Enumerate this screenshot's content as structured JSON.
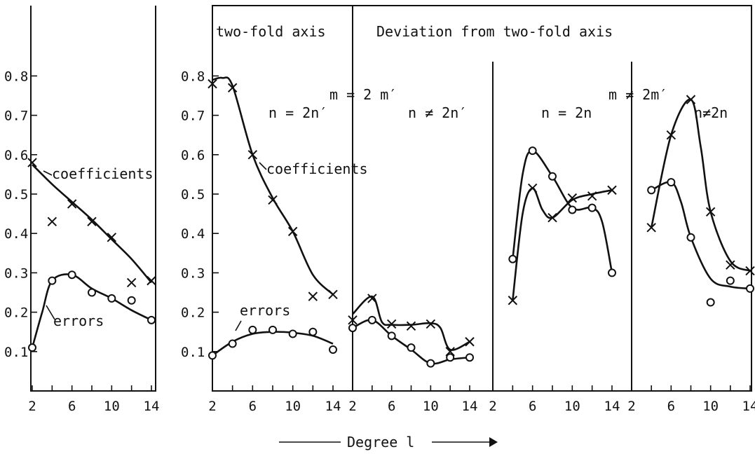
{
  "chart_data": [
    {
      "type": "line",
      "panel": "left",
      "title": "",
      "xlabel": "",
      "ylabel": "",
      "xlim": [
        2,
        14
      ],
      "ylim": [
        0,
        0.9
      ],
      "x_ticks": [
        "2",
        "6",
        "10",
        "14"
      ],
      "y_ticks": [
        "0.1",
        "0.2",
        "0.3",
        "0.4",
        "0.5",
        "0.6",
        "0.7",
        "0.8"
      ],
      "series": [
        {
          "name": "coefficients",
          "marker": "x",
          "points": [
            [
              2,
              0.58
            ],
            [
              4,
              0.43
            ],
            [
              6,
              0.475
            ],
            [
              8,
              0.43
            ],
            [
              10,
              0.39
            ],
            [
              12,
              0.275
            ],
            [
              14,
              0.28
            ]
          ],
          "curve": [
            [
              2,
              0.575
            ],
            [
              4,
              0.525
            ],
            [
              6,
              0.48
            ],
            [
              8,
              0.435
            ],
            [
              10,
              0.385
            ],
            [
              12,
              0.335
            ],
            [
              14,
              0.275
            ]
          ]
        },
        {
          "name": "errors",
          "marker": "o",
          "points": [
            [
              2,
              0.11
            ],
            [
              4,
              0.28
            ],
            [
              6,
              0.295
            ],
            [
              8,
              0.25
            ],
            [
              10,
              0.235
            ],
            [
              12,
              0.23
            ],
            [
              14,
              0.18
            ]
          ],
          "curve": [
            [
              2,
              0.11
            ],
            [
              3,
              0.2
            ],
            [
              4,
              0.28
            ],
            [
              6,
              0.295
            ],
            [
              8,
              0.26
            ],
            [
              10,
              0.235
            ],
            [
              12,
              0.205
            ],
            [
              14,
              0.18
            ]
          ]
        }
      ]
    },
    {
      "type": "line",
      "panel": "right",
      "xlabel": "Degree l",
      "ylim": [
        0,
        0.9
      ],
      "y_ticks": [
        "0.1",
        "0.2",
        "0.3",
        "0.4",
        "0.5",
        "0.6",
        "0.7",
        "0.8"
      ],
      "headers": {
        "section1": "two-fold axis",
        "section2": "Deviation from two-fold axis",
        "m_eq": "m = 2 m′",
        "m_neq": "m ≠ 2m′"
      },
      "subpanels": [
        {
          "label": "n = 2n′",
          "x_ticks": [
            "2",
            "6",
            "10",
            "14"
          ],
          "series": [
            {
              "name": "coefficients",
              "marker": "x",
              "points": [
                [
                  2,
                  0.78
                ],
                [
                  4,
                  0.77
                ],
                [
                  6,
                  0.6
                ],
                [
                  8,
                  0.485
                ],
                [
                  10,
                  0.405
                ],
                [
                  12,
                  0.24
                ],
                [
                  14,
                  0.245
                ]
              ],
              "curve": [
                [
                  2,
                  0.79
                ],
                [
                  3,
                  0.795
                ],
                [
                  4,
                  0.775
                ],
                [
                  6,
                  0.6
                ],
                [
                  8,
                  0.49
                ],
                [
                  10,
                  0.405
                ],
                [
                  12,
                  0.295
                ],
                [
                  14,
                  0.245
                ]
              ]
            },
            {
              "name": "errors",
              "marker": "o",
              "points": [
                [
                  2,
                  0.09
                ],
                [
                  4,
                  0.12
                ],
                [
                  6,
                  0.155
                ],
                [
                  8,
                  0.155
                ],
                [
                  10,
                  0.145
                ],
                [
                  12,
                  0.15
                ],
                [
                  14,
                  0.105
                ]
              ],
              "curve": [
                [
                  2,
                  0.09
                ],
                [
                  4,
                  0.125
                ],
                [
                  6,
                  0.145
                ],
                [
                  8,
                  0.15
                ],
                [
                  10,
                  0.148
                ],
                [
                  12,
                  0.14
                ],
                [
                  14,
                  0.12
                ]
              ]
            }
          ]
        },
        {
          "label": "n ≠ 2n′",
          "x_ticks": [
            "2",
            "6",
            "10",
            "14"
          ],
          "series": [
            {
              "name": "coefficients",
              "marker": "x",
              "points": [
                [
                  2,
                  0.18
                ],
                [
                  4,
                  0.235
                ],
                [
                  6,
                  0.17
                ],
                [
                  8,
                  0.165
                ],
                [
                  10,
                  0.17
                ],
                [
                  12,
                  0.1
                ],
                [
                  14,
                  0.125
                ]
              ],
              "curve": [
                [
                  2,
                  0.195
                ],
                [
                  4,
                  0.24
                ],
                [
                  5,
                  0.175
                ],
                [
                  6,
                  0.168
                ],
                [
                  8,
                  0.168
                ],
                [
                  10,
                  0.172
                ],
                [
                  11,
                  0.16
                ],
                [
                  12,
                  0.105
                ],
                [
                  14,
                  0.125
                ]
              ]
            },
            {
              "name": "errors",
              "marker": "o",
              "points": [
                [
                  2,
                  0.16
                ],
                [
                  4,
                  0.18
                ],
                [
                  6,
                  0.14
                ],
                [
                  8,
                  0.11
                ],
                [
                  10,
                  0.07
                ],
                [
                  12,
                  0.085
                ],
                [
                  14,
                  0.085
                ]
              ],
              "curve": [
                [
                  2,
                  0.16
                ],
                [
                  4,
                  0.18
                ],
                [
                  6,
                  0.14
                ],
                [
                  8,
                  0.105
                ],
                [
                  10,
                  0.07
                ],
                [
                  12,
                  0.08
                ],
                [
                  14,
                  0.085
                ]
              ]
            }
          ]
        },
        {
          "label": "n = 2n",
          "x_ticks": [
            "2",
            "6",
            "10",
            "14"
          ],
          "series": [
            {
              "name": "coefficients",
              "marker": "x",
              "points": [
                [
                  4,
                  0.23
                ],
                [
                  6,
                  0.515
                ],
                [
                  8,
                  0.44
                ],
                [
                  10,
                  0.49
                ],
                [
                  12,
                  0.495
                ],
                [
                  14,
                  0.51
                ]
              ],
              "curve": [
                [
                  4,
                  0.23
                ],
                [
                  5,
                  0.45
                ],
                [
                  6,
                  0.515
                ],
                [
                  7,
                  0.46
                ],
                [
                  8,
                  0.44
                ],
                [
                  10,
                  0.485
                ],
                [
                  12,
                  0.5
                ],
                [
                  14,
                  0.51
                ]
              ]
            },
            {
              "name": "errors",
              "marker": "o",
              "points": [
                [
                  4,
                  0.335
                ],
                [
                  6,
                  0.61
                ],
                [
                  8,
                  0.545
                ],
                [
                  10,
                  0.46
                ],
                [
                  12,
                  0.465
                ],
                [
                  14,
                  0.3
                ]
              ],
              "curve": [
                [
                  4,
                  0.335
                ],
                [
                  5,
                  0.55
                ],
                [
                  6,
                  0.61
                ],
                [
                  8,
                  0.545
                ],
                [
                  10,
                  0.465
                ],
                [
                  12,
                  0.465
                ],
                [
                  13,
                  0.43
                ],
                [
                  14,
                  0.3
                ]
              ]
            }
          ]
        },
        {
          "label": "n≠2n",
          "x_ticks": [
            "2",
            "6",
            "10",
            "14"
          ],
          "series": [
            {
              "name": "coefficients",
              "marker": "x",
              "points": [
                [
                  4,
                  0.415
                ],
                [
                  6,
                  0.65
                ],
                [
                  8,
                  0.74
                ],
                [
                  10,
                  0.455
                ],
                [
                  12,
                  0.32
                ],
                [
                  14,
                  0.305
                ]
              ],
              "curve": [
                [
                  4,
                  0.415
                ],
                [
                  6,
                  0.65
                ],
                [
                  8,
                  0.74
                ],
                [
                  9,
                  0.62
                ],
                [
                  10,
                  0.455
                ],
                [
                  12,
                  0.33
                ],
                [
                  14,
                  0.305
                ]
              ]
            },
            {
              "name": "errors",
              "marker": "o",
              "points": [
                [
                  4,
                  0.51
                ],
                [
                  6,
                  0.53
                ],
                [
                  8,
                  0.39
                ],
                [
                  10,
                  0.225
                ],
                [
                  12,
                  0.28
                ],
                [
                  14,
                  0.26
                ]
              ],
              "curve": [
                [
                  4,
                  0.51
                ],
                [
                  6,
                  0.53
                ],
                [
                  7,
                  0.48
                ],
                [
                  8,
                  0.39
                ],
                [
                  10,
                  0.285
                ],
                [
                  12,
                  0.265
                ],
                [
                  14,
                  0.26
                ]
              ]
            }
          ]
        }
      ],
      "annotations": {
        "coefficients": "coefficients",
        "errors": "errors"
      }
    }
  ],
  "left_annotations": {
    "coefficients": "coefficients",
    "errors": "errors"
  }
}
